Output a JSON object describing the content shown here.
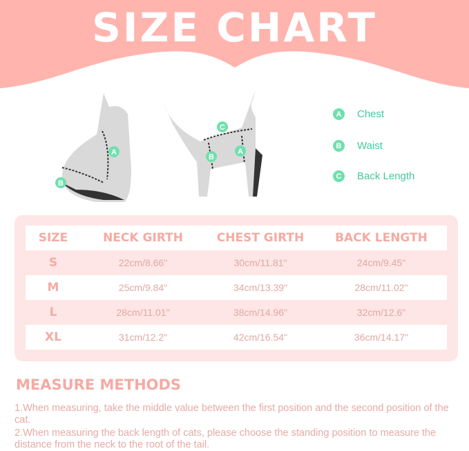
{
  "title": "SIZE CHART",
  "colors": {
    "banner": "#ffb4ae",
    "accent": "#f5aaa3",
    "legend_green": "#6fe0ae",
    "table_bg": "#fde6e5"
  },
  "legend": [
    {
      "badge": "A",
      "label": "Chest"
    },
    {
      "badge": "B",
      "label": "Waist"
    },
    {
      "badge": "C",
      "label": "Back Length"
    }
  ],
  "table": {
    "headers": [
      "SIZE",
      "NECK GIRTH",
      "CHEST GIRTH",
      "BACK LENGTH"
    ],
    "rows": [
      {
        "size": "S",
        "neck": "22cm/8.66\"",
        "chest": "30cm/11.81\"",
        "back": "24cm/9.45\""
      },
      {
        "size": "M",
        "neck": "25cm/9.84\"",
        "chest": "34cm/13.39\"",
        "back": "28cm/11.02\""
      },
      {
        "size": "L",
        "neck": "28cm/11.01\"",
        "chest": "38cm/14.96\"",
        "back": "32cm/12.6\""
      },
      {
        "size": "XL",
        "neck": "31cm/12.2\"",
        "chest": "42cm/16.54\"",
        "back": "36cm/14.17\""
      }
    ]
  },
  "measure": {
    "title": "MEASURE METHODS",
    "notes": [
      "1.When measuring, take the middle value between the first position and the second position of the cat.",
      "2.When measuring the back length of cats, please choose the standing position to measure the distance from the neck to the root of the tail."
    ]
  }
}
